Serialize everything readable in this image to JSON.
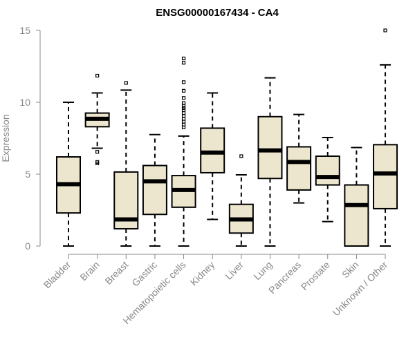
{
  "chart_data": {
    "type": "boxplot",
    "title": "ENSG00000167434 - CA4",
    "xlabel": "",
    "ylabel": "Expression",
    "ylim": [
      0,
      15
    ],
    "yticks": [
      0,
      5,
      10,
      15
    ],
    "grid": false,
    "box_color": "#EDE6CE",
    "categories": [
      "Bladder",
      "Brain",
      "Breast",
      "Gastric",
      "Hematopoietic cells",
      "Kidney",
      "Liver",
      "Lung",
      "Pancreas",
      "Prostate",
      "Skin",
      "Unknown / Other"
    ],
    "boxes": [
      {
        "name": "Bladder",
        "whislo": 0.0,
        "q1": 2.3,
        "med": 4.3,
        "q3": 6.2,
        "whishi": 10.0,
        "fliers": []
      },
      {
        "name": "Brain",
        "whislo": 6.8,
        "q1": 8.3,
        "med": 8.85,
        "q3": 9.25,
        "whishi": 10.65,
        "fliers": [
          11.85,
          6.55,
          5.85,
          5.75
        ]
      },
      {
        "name": "Breast",
        "whislo": 0.0,
        "q1": 1.2,
        "med": 1.85,
        "q3": 5.15,
        "whishi": 10.85,
        "fliers": [
          11.35
        ]
      },
      {
        "name": "Gastric",
        "whislo": 0.0,
        "q1": 2.2,
        "med": 4.5,
        "q3": 5.6,
        "whishi": 7.75,
        "fliers": []
      },
      {
        "name": "Hematopoietic cells",
        "whislo": 0.0,
        "q1": 2.7,
        "med": 3.9,
        "q3": 4.9,
        "whishi": 7.65,
        "fliers": [
          8.25,
          8.45,
          8.65,
          8.85,
          9.05,
          9.25,
          9.45,
          9.6,
          9.75,
          9.95,
          10.3,
          10.8,
          11.4,
          12.75,
          13.05
        ]
      },
      {
        "name": "Kidney",
        "whislo": 1.85,
        "q1": 5.1,
        "med": 6.5,
        "q3": 8.2,
        "whishi": 10.65,
        "fliers": []
      },
      {
        "name": "Liver",
        "whislo": 0.0,
        "q1": 0.9,
        "med": 1.85,
        "q3": 2.9,
        "whishi": 4.95,
        "fliers": [
          6.25
        ]
      },
      {
        "name": "Lung",
        "whislo": 0.0,
        "q1": 4.7,
        "med": 6.65,
        "q3": 9.0,
        "whishi": 11.7,
        "fliers": []
      },
      {
        "name": "Pancreas",
        "whislo": 3.0,
        "q1": 3.9,
        "med": 5.85,
        "q3": 6.9,
        "whishi": 9.15,
        "fliers": []
      },
      {
        "name": "Prostate",
        "whislo": 1.7,
        "q1": 4.25,
        "med": 4.8,
        "q3": 6.25,
        "whishi": 7.55,
        "fliers": []
      },
      {
        "name": "Skin",
        "whislo": 0.0,
        "q1": 0.0,
        "med": 2.85,
        "q3": 4.25,
        "whishi": 6.85,
        "fliers": []
      },
      {
        "name": "Unknown / Other",
        "whislo": 0.0,
        "q1": 2.6,
        "med": 5.05,
        "q3": 7.05,
        "whishi": 12.6,
        "fliers": [
          15.0
        ]
      }
    ]
  }
}
